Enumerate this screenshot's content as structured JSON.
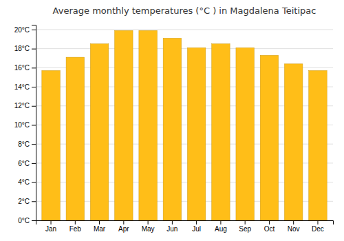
{
  "chart_data": {
    "type": "bar",
    "title": "Average monthly temperatures (°C ) in Magdalena Teitipac",
    "categories": [
      "Jan",
      "Feb",
      "Mar",
      "Apr",
      "May",
      "Jun",
      "Jul",
      "Aug",
      "Sep",
      "Oct",
      "Nov",
      "Dec"
    ],
    "values": [
      15.7,
      17.1,
      18.5,
      19.9,
      19.9,
      19.1,
      18.1,
      18.5,
      18.1,
      17.3,
      16.4,
      15.7
    ],
    "color": "#FFBE18",
    "ylim": [
      0,
      20.5
    ],
    "yticks": [
      {
        "value": 0,
        "label": "0°C"
      },
      {
        "value": 2,
        "label": "2°C"
      },
      {
        "value": 4,
        "label": "4°C"
      },
      {
        "value": 6,
        "label": "6°C"
      },
      {
        "value": 8,
        "label": "8°C"
      },
      {
        "value": 10,
        "label": "10°C"
      },
      {
        "value": 12,
        "label": "12°C"
      },
      {
        "value": 14,
        "label": "14°C"
      },
      {
        "value": 16,
        "label": "16°C"
      },
      {
        "value": 18,
        "label": "18°C"
      },
      {
        "value": 20,
        "label": "20°C"
      }
    ],
    "grid": true
  }
}
